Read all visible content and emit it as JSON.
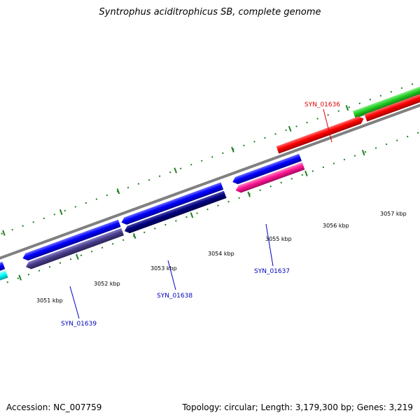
{
  "title": "Syntrophus aciditrophicus SB, complete genome",
  "footer": {
    "accession_label": "Accession:",
    "accession_value": "NC_007759",
    "topology_text": "Topology: circular; Length: 3,179,300 bp; Genes: 3,219"
  },
  "colors": {
    "backbone": "#808080",
    "tick_green": "#208020",
    "label_red": "#e00000",
    "label_blue": "#0000c0"
  },
  "scale_labels": [
    "3051 kbp",
    "3052 kbp",
    "3053 kbp",
    "3054 kbp",
    "3055 kbp",
    "3056 kbp",
    "3057 kbp"
  ],
  "genes": [
    {
      "name": "SYN_01636",
      "strand": "+",
      "color": "#ff0000",
      "label_color": "red"
    },
    {
      "name": "SYN_01637",
      "strand": "-",
      "color": "#ff1493",
      "label_color": "blue"
    },
    {
      "name": "SYN_01638",
      "strand": "-",
      "color": "#000080",
      "label_color": "blue"
    },
    {
      "name": "SYN_01639",
      "strand": "-",
      "color": "#483d8b",
      "label_color": "blue"
    }
  ],
  "features": [
    {
      "track": "upper-outer",
      "color": "#22cc22",
      "strand": "+"
    },
    {
      "track": "upper-inner",
      "color": "#ff0000",
      "strand": "+"
    },
    {
      "track": "upper-inner",
      "color": "#ff0000",
      "strand": "+"
    },
    {
      "track": "lower-inner",
      "color": "#0000ff",
      "strand": "-"
    },
    {
      "track": "lower-inner",
      "color": "#0000ff",
      "strand": "-"
    },
    {
      "track": "lower-inner",
      "color": "#0000ff",
      "strand": "-"
    },
    {
      "track": "lower-inner",
      "color": "#0000ff",
      "strand": "-"
    },
    {
      "track": "lower-outer",
      "color": "#ff1493",
      "strand": "-"
    },
    {
      "track": "lower-outer",
      "color": "#000080",
      "strand": "-"
    },
    {
      "track": "lower-outer",
      "color": "#483d8b",
      "strand": "-"
    },
    {
      "track": "lower-outer",
      "color": "#00ffff",
      "strand": "-"
    }
  ]
}
